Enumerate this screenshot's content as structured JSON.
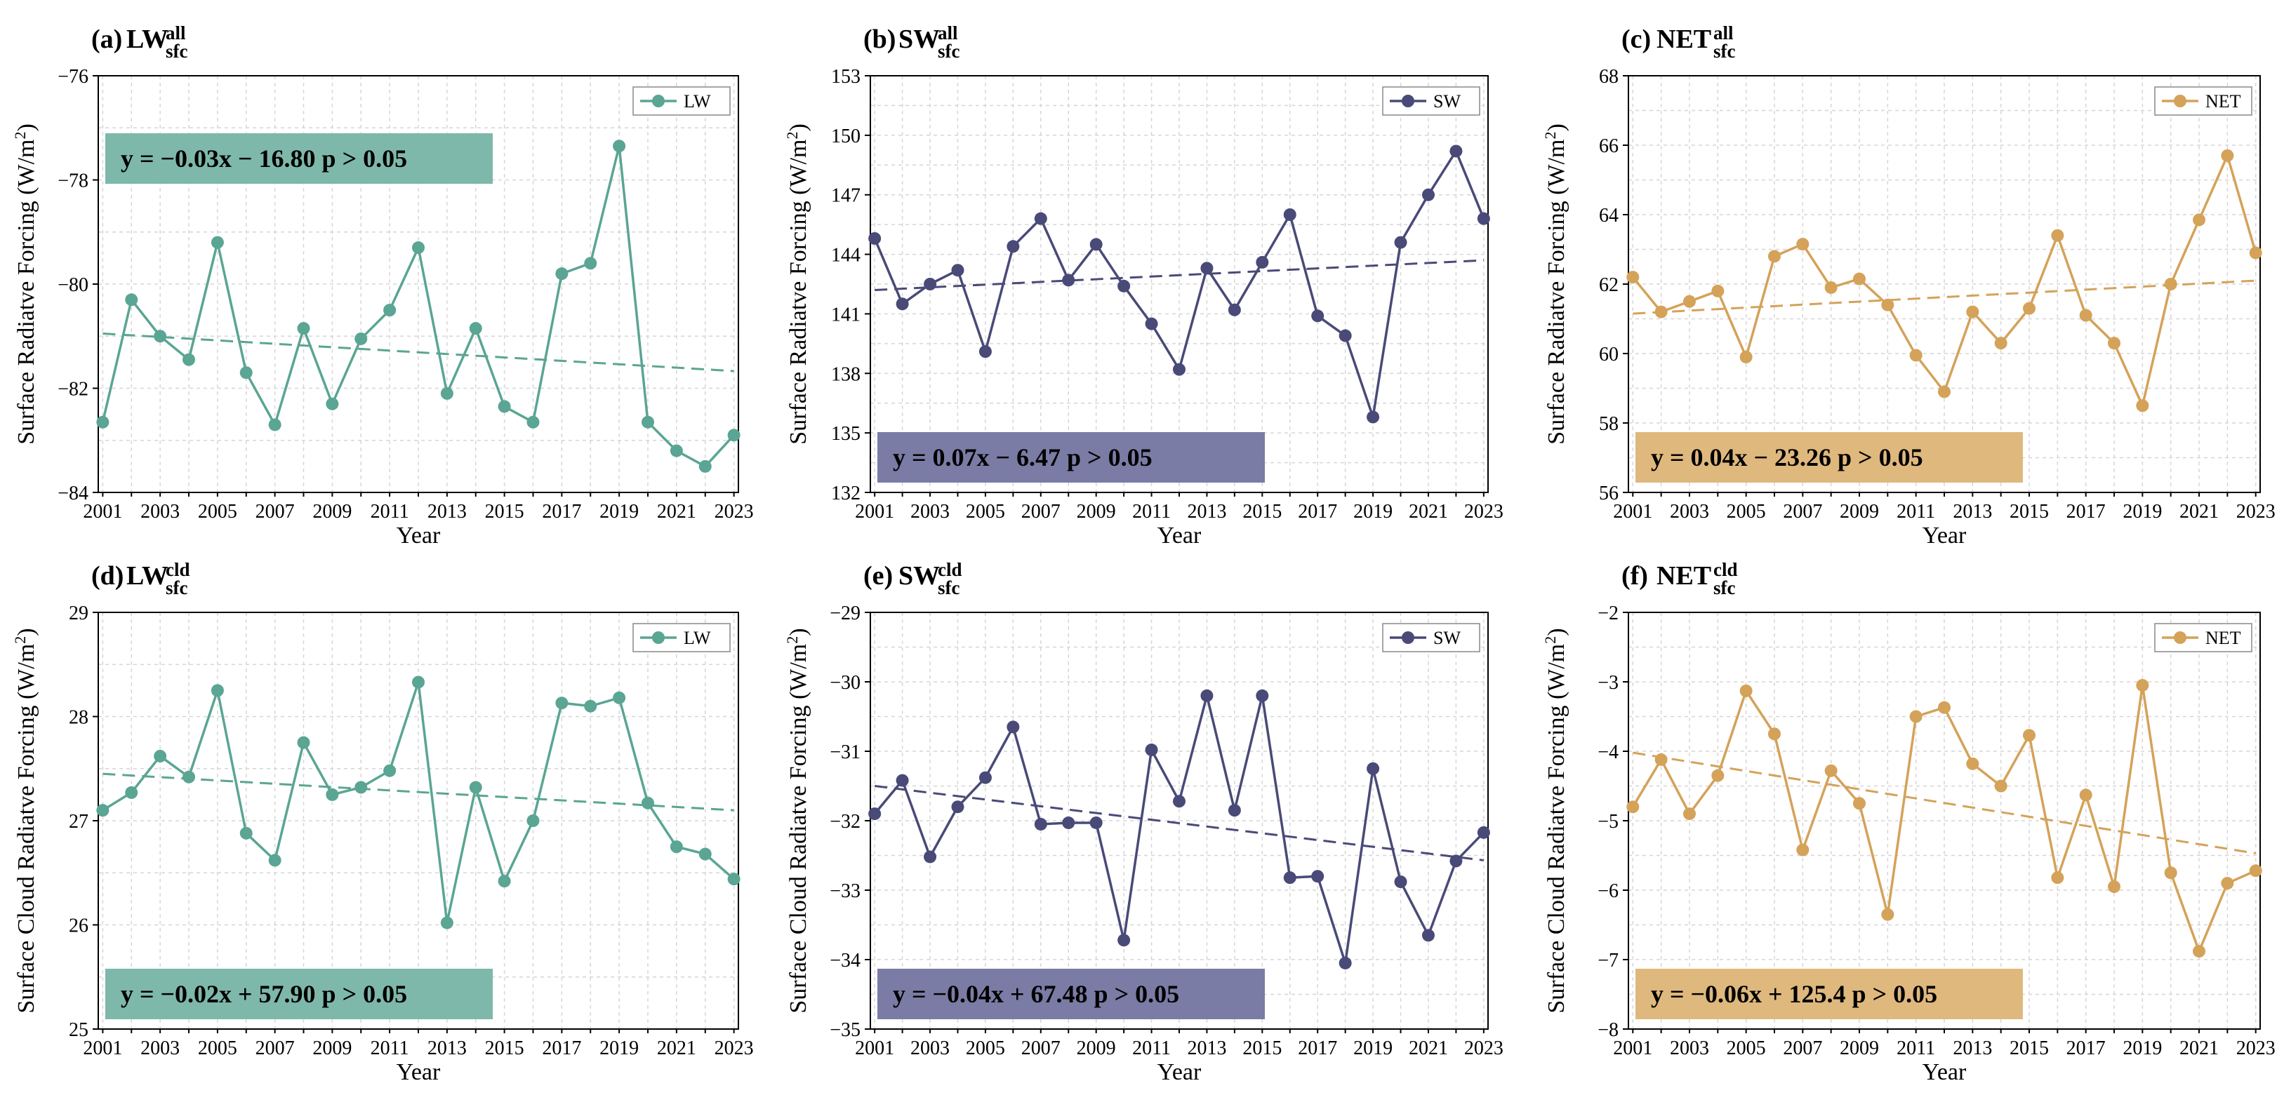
{
  "chart_data": [
    {
      "type": "line",
      "panel_label": "(a)",
      "title_main": "LW",
      "title_sup": "all",
      "title_sub": "sfc",
      "ylabel_prefix": "Surface Radiatve Forcing (W/m",
      "ylabel_sup": "2",
      "ylabel_suffix": ")",
      "xlabel": "Year",
      "legend_label": "LW",
      "color": "#5aa593",
      "box_color": "#7eb8aa",
      "equation": "y = −0.03x − 16.80  p > 0.05",
      "eq_position": "top-left",
      "x": [
        2001,
        2002,
        2003,
        2004,
        2005,
        2006,
        2007,
        2008,
        2009,
        2010,
        2011,
        2012,
        2013,
        2014,
        2015,
        2016,
        2017,
        2018,
        2019,
        2020,
        2021,
        2022,
        2023
      ],
      "values": [
        -82.65,
        -80.3,
        -81.0,
        -81.45,
        -79.2,
        -81.7,
        -82.7,
        -80.85,
        -82.3,
        -81.05,
        -80.5,
        -79.3,
        -82.1,
        -80.85,
        -82.35,
        -82.65,
        -79.8,
        -79.6,
        -77.35,
        -82.65,
        -83.2,
        -83.5,
        -82.9
      ],
      "trend": [
        -80.95,
        -81.67
      ],
      "ylim": [
        -84,
        -76
      ],
      "yticks": [
        -84,
        -82,
        -80,
        -78,
        -76
      ],
      "ytick_labels": [
        "−84",
        "−82",
        "−80",
        "−78",
        "−76"
      ],
      "xticks": [
        "2001",
        "2003",
        "2005",
        "2007",
        "2009",
        "2011",
        "2013",
        "2015",
        "2017",
        "2019",
        "2021",
        "2023"
      ]
    },
    {
      "type": "line",
      "panel_label": "(b)",
      "title_main": "SW",
      "title_sup": "all",
      "title_sub": "sfc",
      "ylabel_prefix": "Surface Radiatve Forcing (W/m",
      "ylabel_sup": "2",
      "ylabel_suffix": ")",
      "xlabel": "Year",
      "legend_label": "SW",
      "color": "#494a78",
      "box_color": "#7b7ca5",
      "equation": "y = 0.07x − 6.47  p > 0.05",
      "eq_position": "bottom-left",
      "x": [
        2001,
        2002,
        2003,
        2004,
        2005,
        2006,
        2007,
        2008,
        2009,
        2010,
        2011,
        2012,
        2013,
        2014,
        2015,
        2016,
        2017,
        2018,
        2019,
        2020,
        2021,
        2022,
        2023
      ],
      "values": [
        144.8,
        141.5,
        142.5,
        143.2,
        139.1,
        144.4,
        145.8,
        142.7,
        144.5,
        142.4,
        140.5,
        138.2,
        143.3,
        141.2,
        143.6,
        146.0,
        140.9,
        139.9,
        135.8,
        144.6,
        147.0,
        149.2,
        145.8
      ],
      "trend": [
        142.2,
        143.7
      ],
      "ylim": [
        132,
        153
      ],
      "yticks": [
        132,
        135,
        138,
        141,
        144,
        147,
        150,
        153
      ],
      "ytick_labels": [
        "132",
        "135",
        "138",
        "141",
        "144",
        "147",
        "150",
        "153"
      ],
      "xticks": [
        "2001",
        "2003",
        "2005",
        "2007",
        "2009",
        "2011",
        "2013",
        "2015",
        "2017",
        "2019",
        "2021",
        "2023"
      ]
    },
    {
      "type": "line",
      "panel_label": "(c)",
      "title_main": "NET",
      "title_sup": "all",
      "title_sub": "sfc",
      "ylabel_prefix": "Surface Radiatve Forcing (W/m",
      "ylabel_sup": "2",
      "ylabel_suffix": ")",
      "xlabel": "Year",
      "legend_label": "NET",
      "color": "#d4a259",
      "box_color": "#dfb87e",
      "equation": "y = 0.04x − 23.26  p > 0.05",
      "eq_position": "bottom-left",
      "x": [
        2001,
        2002,
        2003,
        2004,
        2005,
        2006,
        2007,
        2008,
        2009,
        2010,
        2011,
        2012,
        2013,
        2014,
        2015,
        2016,
        2017,
        2018,
        2019,
        2020,
        2021,
        2022,
        2023
      ],
      "values": [
        62.2,
        61.2,
        61.5,
        61.8,
        59.9,
        62.8,
        63.15,
        61.9,
        62.15,
        61.4,
        59.95,
        58.9,
        61.2,
        60.3,
        61.3,
        63.4,
        61.1,
        60.3,
        58.5,
        62.0,
        63.85,
        65.7,
        62.9
      ],
      "trend": [
        61.15,
        62.1
      ],
      "ylim": [
        56,
        68
      ],
      "yticks": [
        56,
        58,
        60,
        62,
        64,
        66,
        68
      ],
      "ytick_labels": [
        "56",
        "58",
        "60",
        "62",
        "64",
        "66",
        "68"
      ],
      "xticks": [
        "2001",
        "2003",
        "2005",
        "2007",
        "2009",
        "2011",
        "2013",
        "2015",
        "2017",
        "2019",
        "2021",
        "2023"
      ]
    },
    {
      "type": "line",
      "panel_label": "(d)",
      "title_main": "LW",
      "title_sup": "cld",
      "title_sub": "sfc",
      "ylabel_prefix": "Surface Cloud Radiatve Forcing (W/m",
      "ylabel_sup": "2",
      "ylabel_suffix": ")",
      "xlabel": "Year",
      "legend_label": "LW",
      "color": "#5aa593",
      "box_color": "#7eb8aa",
      "equation": "y = −0.02x + 57.90  p > 0.05",
      "eq_position": "bottom-left",
      "x": [
        2001,
        2002,
        2003,
        2004,
        2005,
        2006,
        2007,
        2008,
        2009,
        2010,
        2011,
        2012,
        2013,
        2014,
        2015,
        2016,
        2017,
        2018,
        2019,
        2020,
        2021,
        2022,
        2023
      ],
      "values": [
        27.1,
        27.27,
        27.62,
        27.42,
        28.25,
        26.88,
        26.62,
        27.75,
        27.25,
        27.32,
        27.48,
        28.33,
        26.02,
        27.32,
        26.42,
        27.0,
        28.13,
        28.1,
        28.18,
        27.17,
        26.75,
        26.68,
        26.44
      ],
      "trend": [
        27.45,
        27.1
      ],
      "ylim": [
        25,
        29
      ],
      "yticks": [
        25,
        26,
        27,
        28,
        29
      ],
      "ytick_labels": [
        "25",
        "26",
        "27",
        "28",
        "29"
      ],
      "xticks": [
        "2001",
        "2003",
        "2005",
        "2007",
        "2009",
        "2011",
        "2013",
        "2015",
        "2017",
        "2019",
        "2021",
        "2023"
      ]
    },
    {
      "type": "line",
      "panel_label": "(e)",
      "title_main": "SW",
      "title_sup": "cld",
      "title_sub": "sfc",
      "ylabel_prefix": "Surface Cloud Radiatve Forcing (W/m",
      "ylabel_sup": "2",
      "ylabel_suffix": ")",
      "xlabel": "Year",
      "legend_label": "SW",
      "color": "#494a78",
      "box_color": "#7b7ca5",
      "equation": "y = −0.04x + 67.48  p > 0.05",
      "eq_position": "bottom-left",
      "x": [
        2001,
        2002,
        2003,
        2004,
        2005,
        2006,
        2007,
        2008,
        2009,
        2010,
        2011,
        2012,
        2013,
        2014,
        2015,
        2016,
        2017,
        2018,
        2019,
        2020,
        2021,
        2022,
        2023
      ],
      "values": [
        -31.9,
        -31.42,
        -32.52,
        -31.8,
        -31.38,
        -30.65,
        -32.05,
        -32.03,
        -32.03,
        -33.72,
        -30.98,
        -31.72,
        -30.2,
        -31.85,
        -30.2,
        -32.82,
        -32.8,
        -34.05,
        -31.25,
        -32.88,
        -33.65,
        -32.58,
        -32.17
      ],
      "trend": [
        -31.5,
        -32.57
      ],
      "ylim": [
        -35,
        -29
      ],
      "yticks": [
        -35,
        -34,
        -33,
        -32,
        -31,
        -30,
        -29
      ],
      "ytick_labels": [
        "−35",
        "−34",
        "−33",
        "−32",
        "−31",
        "−30",
        "−29"
      ],
      "xticks": [
        "2001",
        "2003",
        "2005",
        "2007",
        "2009",
        "2011",
        "2013",
        "2015",
        "2017",
        "2019",
        "2021",
        "2023"
      ]
    },
    {
      "type": "line",
      "panel_label": "(f)",
      "title_main": "NET",
      "title_sup": "cld",
      "title_sub": "sfc",
      "ylabel_prefix": "Surface Cloud Radiatve Forcing (W/m",
      "ylabel_sup": "2",
      "ylabel_suffix": ")",
      "xlabel": "Year",
      "legend_label": "NET",
      "color": "#d4a259",
      "box_color": "#dfb87e",
      "equation": "y = −0.06x + 125.4  p > 0.05",
      "eq_position": "bottom-left",
      "x": [
        2001,
        2002,
        2003,
        2004,
        2005,
        2006,
        2007,
        2008,
        2009,
        2010,
        2011,
        2012,
        2013,
        2014,
        2015,
        2016,
        2017,
        2018,
        2019,
        2020,
        2021,
        2022,
        2023
      ],
      "values": [
        -4.8,
        -4.12,
        -4.9,
        -4.35,
        -3.13,
        -3.75,
        -5.42,
        -4.28,
        -4.75,
        -6.35,
        -3.5,
        -3.37,
        -4.18,
        -4.5,
        -3.77,
        -5.82,
        -4.63,
        -5.95,
        -3.05,
        -5.75,
        -6.88,
        -5.9,
        -5.72
      ],
      "trend": [
        -4.02,
        -5.47
      ],
      "ylim": [
        -8,
        -2
      ],
      "yticks": [
        -8,
        -7,
        -6,
        -5,
        -4,
        -3,
        -2
      ],
      "ytick_labels": [
        "−8",
        "−7",
        "−6",
        "−5",
        "−4",
        "−3",
        "−2"
      ],
      "xticks": [
        "2001",
        "2003",
        "2005",
        "2007",
        "2009",
        "2011",
        "2013",
        "2015",
        "2017",
        "2019",
        "2021",
        "2023"
      ]
    }
  ]
}
